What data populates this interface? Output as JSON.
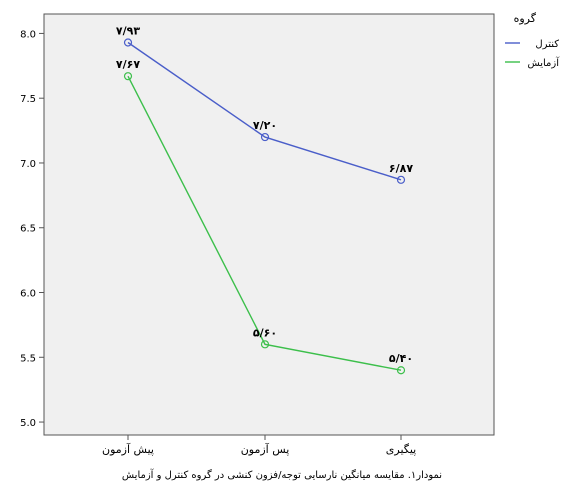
{
  "chart_data": {
    "type": "line",
    "title": "",
    "xlabel": "",
    "ylabel": "",
    "categories": [
      "پیش آزمون",
      "پس آزمون",
      "پیگیری"
    ],
    "ylim": [
      4.9,
      8.15
    ],
    "yticks": [
      "5.0",
      "5.5",
      "6.0",
      "6.5",
      "7.0",
      "7.5",
      "8.0"
    ],
    "grid": false,
    "legend_title": "گروه",
    "legend_position": "top-right",
    "background": "#f0f0f0",
    "series": [
      {
        "name": "کنترل",
        "color": "#4a5ec9",
        "values": [
          7.93,
          7.2,
          6.87
        ],
        "labels": [
          "۷/۹۳",
          "۷/۲۰",
          "۶/۸۷"
        ]
      },
      {
        "name": "آزمایش",
        "color": "#3cbf4b",
        "values": [
          7.67,
          5.6,
          5.4
        ],
        "labels": [
          "۷/۶۷",
          "۵/۶۰",
          "۵/۴۰"
        ]
      }
    ],
    "caption": "نمودار۱. مقایسه میانگین نارسایی توجه/فزون کنشی در گروه  کنترل و آزمایش"
  }
}
